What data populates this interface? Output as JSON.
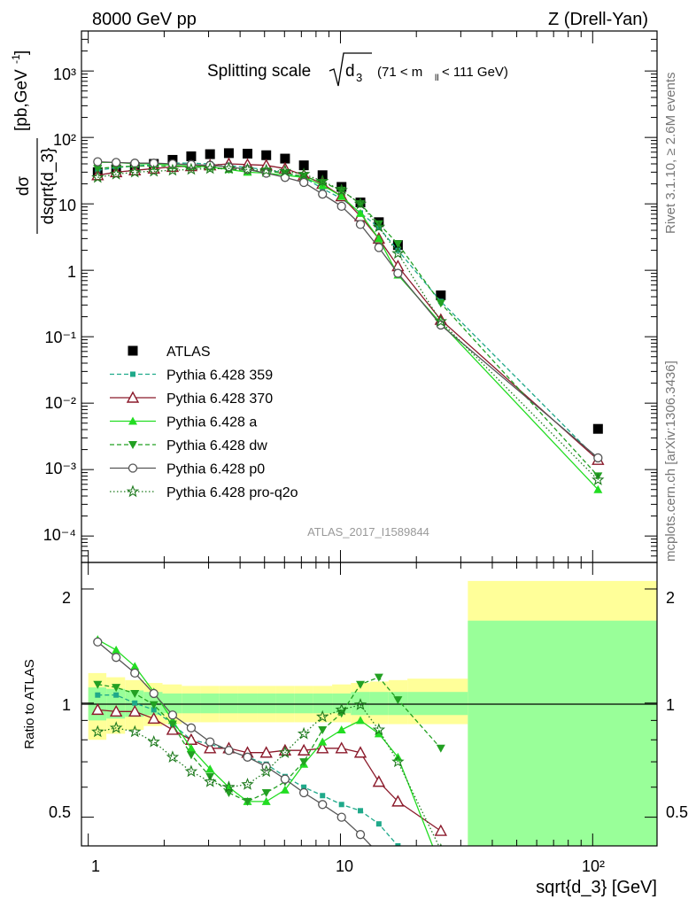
{
  "header": {
    "left": "8000 GeV pp",
    "right": "Z (Drell-Yan)"
  },
  "title": {
    "main": "Splitting scale",
    "var": "d",
    "var_sub": "3",
    "cut_pre": "(71 < m",
    "cut_sub": "ll",
    "cut_post": " < 111 GeV)"
  },
  "side_text": {
    "rivet": "Rivet 3.1.10, ≥ 2.6M events",
    "mcplots": "mcplots.cern.ch [arXiv:1306.3436]"
  },
  "watermark": "ATLAS_2017_I1589844",
  "axes": {
    "ylabel_num": "dσ",
    "ylabel_den": "dsqrt{d_3}",
    "ylabel_unit_pre": "[pb,GeV",
    "ylabel_unit_sup": "-1",
    "ylabel_unit_post": "]",
    "ratio_ylabel": "Ratio to ATLAS",
    "xlabel": "sqrt{d_3} [GeV]",
    "x_ticks": [
      "1",
      "10",
      "10²"
    ],
    "y_ticks": [
      "10³",
      "10²",
      "10",
      "1",
      "10⁻¹",
      "10⁻²",
      "10⁻³",
      "10⁻⁴"
    ],
    "ratio_ticks": [
      "0.5",
      "1",
      "2"
    ]
  },
  "chart_data": {
    "type": "scatter",
    "x_scale": "log",
    "y_scale": "log",
    "xlim": [
      0.94,
      180
    ],
    "ylim": [
      4e-05,
      4000
    ],
    "ratio_ylim": [
      0.42,
      2.35
    ],
    "legend_position": "middle-left",
    "x": [
      1.09,
      1.29,
      1.53,
      1.82,
      2.16,
      2.56,
      3.04,
      3.61,
      4.28,
      5.08,
      6.03,
      7.16,
      8.49,
      10.1,
      12.0,
      14.2,
      16.9,
      25.0,
      105
    ],
    "series": [
      {
        "name": "ATLAS",
        "color": "#000000",
        "marker": "square",
        "dash": "none",
        "values": [
          30,
          33,
          36,
          40,
          46,
          52,
          56,
          58,
          57,
          54,
          48,
          38,
          27,
          18,
          10.5,
          5.3,
          2.4,
          0.42,
          0.0041
        ]
      },
      {
        "name": "Pythia 6.428 359",
        "color": "#1fa98a",
        "marker": "square-small",
        "dash": "5,3",
        "values": [
          32,
          35,
          37,
          39,
          41,
          41,
          40,
          38,
          35,
          33,
          29,
          25,
          17,
          12,
          7.3,
          4.4,
          2.0,
          0.34,
          0.0014
        ]
      },
      {
        "name": "Pythia 6.428 370",
        "color": "#8b1a2b",
        "marker": "triangle-open",
        "dash": "none",
        "values": [
          27,
          30,
          32,
          34,
          36,
          37,
          38,
          40,
          39,
          38,
          34,
          27,
          20,
          13,
          6.5,
          3.0,
          1.15,
          0.18,
          0.0014
        ]
      },
      {
        "name": "Pythia 6.428 a",
        "color": "#22dd22",
        "marker": "triangle",
        "dash": "none",
        "values": [
          42,
          42,
          40,
          40,
          38,
          37,
          36,
          33,
          30,
          29,
          27,
          25,
          19,
          13,
          7.2,
          3.0,
          0.85,
          0.16,
          0.0005
        ]
      },
      {
        "name": "Pythia 6.428 dw",
        "color": "#22a022",
        "marker": "triangle-down",
        "dash": "5,3",
        "values": [
          34,
          36,
          37,
          37,
          37,
          36,
          35,
          33,
          32,
          31,
          29,
          26,
          21,
          16,
          10,
          5.0,
          2.5,
          0.32,
          0.0008
        ]
      },
      {
        "name": "Pythia 6.428 p0",
        "color": "#555555",
        "marker": "circle-open",
        "dash": "none",
        "values": [
          43,
          42,
          41,
          41,
          40,
          39,
          38,
          36,
          33,
          29,
          25,
          21,
          14,
          9.2,
          4.9,
          2.2,
          0.9,
          0.15,
          0.0015
        ]
      },
      {
        "name": "Pythia 6.428 pro-q2o",
        "color": "#1e7a1e",
        "marker": "star-open",
        "dash": "1.5,2.5",
        "values": [
          25,
          28,
          30,
          31,
          32,
          33,
          34,
          34,
          33,
          32,
          31,
          28,
          22,
          16,
          10,
          4.5,
          1.8,
          0.17,
          0.0007
        ]
      }
    ],
    "ratio": {
      "x": [
        1.09,
        1.29,
        1.53,
        1.82,
        2.16,
        2.56,
        3.04,
        3.61,
        4.28,
        5.08,
        6.03,
        7.16,
        8.49,
        10.1,
        12.0,
        14.2,
        16.9,
        25.0
      ],
      "series": [
        {
          "name": "Pythia 6.428 359",
          "values": [
            1.05,
            1.05,
            1.0,
            0.96,
            0.88,
            0.8,
            0.78,
            0.75,
            0.72,
            0.69,
            0.64,
            0.6,
            0.57,
            0.54,
            0.52,
            0.48,
            0.42,
            0.4
          ]
        },
        {
          "name": "Pythia 6.428 370",
          "values": [
            0.96,
            0.95,
            0.95,
            0.91,
            0.85,
            0.8,
            0.76,
            0.76,
            0.74,
            0.74,
            0.75,
            0.75,
            0.76,
            0.76,
            0.74,
            0.62,
            0.55,
            0.46
          ]
        },
        {
          "name": "Pythia 6.428 a",
          "values": [
            1.47,
            1.38,
            1.25,
            1.07,
            0.9,
            0.76,
            0.67,
            0.6,
            0.55,
            0.55,
            0.59,
            0.69,
            0.79,
            0.85,
            0.9,
            0.83,
            0.72,
            0.37
          ]
        },
        {
          "name": "Pythia 6.428 dw",
          "values": [
            1.12,
            1.1,
            1.06,
            0.99,
            0.88,
            0.73,
            0.64,
            0.58,
            0.55,
            0.58,
            0.62,
            0.7,
            0.85,
            0.94,
            1.12,
            1.17,
            1.02,
            0.76
          ]
        },
        {
          "name": "Pythia 6.428 p0",
          "values": [
            1.45,
            1.32,
            1.2,
            1.06,
            0.93,
            0.86,
            0.79,
            0.75,
            0.72,
            0.68,
            0.63,
            0.58,
            0.54,
            0.5,
            0.45,
            0.4,
            0.37,
            0.36
          ]
        },
        {
          "name": "Pythia 6.428 pro-q2o",
          "values": [
            0.84,
            0.86,
            0.84,
            0.79,
            0.72,
            0.66,
            0.62,
            0.6,
            0.61,
            0.66,
            0.74,
            0.83,
            0.92,
            0.96,
            0.99,
            0.85,
            0.7,
            0.41
          ]
        }
      ]
    },
    "ratio_band": {
      "edges": [
        1.0,
        1.18,
        1.4,
        1.66,
        1.97,
        2.35,
        2.79,
        3.31,
        3.93,
        4.66,
        5.54,
        6.58,
        7.81,
        9.27,
        11.0,
        13.07,
        15.52,
        18.43,
        32.0,
        180
      ],
      "green_lo": [
        0.9,
        0.91,
        0.92,
        0.93,
        0.94,
        0.94,
        0.94,
        0.94,
        0.94,
        0.94,
        0.94,
        0.94,
        0.94,
        0.94,
        0.93,
        0.93,
        0.93,
        0.93,
        0.38
      ],
      "green_hi": [
        1.1,
        1.09,
        1.08,
        1.07,
        1.06,
        1.06,
        1.06,
        1.06,
        1.06,
        1.06,
        1.06,
        1.06,
        1.06,
        1.06,
        1.07,
        1.07,
        1.07,
        1.07,
        1.65
      ],
      "yellow_lo": [
        0.8,
        0.83,
        0.85,
        0.87,
        0.88,
        0.89,
        0.89,
        0.89,
        0.89,
        0.89,
        0.89,
        0.89,
        0.89,
        0.89,
        0.88,
        0.88,
        0.88,
        0.88,
        0.35
      ],
      "yellow_hi": [
        1.2,
        1.17,
        1.15,
        1.13,
        1.12,
        1.11,
        1.11,
        1.11,
        1.11,
        1.11,
        1.11,
        1.11,
        1.11,
        1.12,
        1.13,
        1.14,
        1.15,
        1.16,
        2.1
      ]
    }
  }
}
